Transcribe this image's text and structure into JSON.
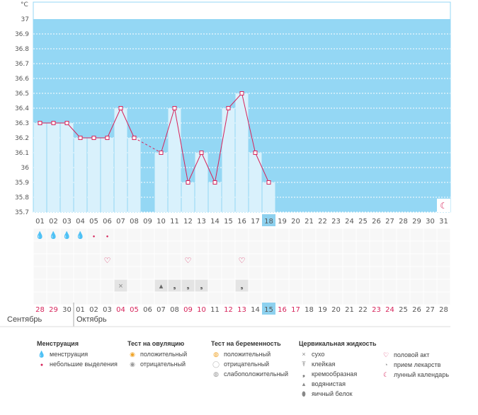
{
  "chart_data": {
    "type": "bar",
    "title": "",
    "ylabel": "°C",
    "ylim": [
      35.7,
      37.0
    ],
    "yticks": [
      "37",
      "36.9",
      "36.8",
      "36.7",
      "36.6",
      "36.5",
      "36.4",
      "36.3",
      "36.2",
      "36.1",
      "36",
      "35.9",
      "35.8",
      "35.7"
    ],
    "categories": [
      "01",
      "02",
      "03",
      "04",
      "05",
      "06",
      "07",
      "08",
      "09",
      "10",
      "11",
      "12",
      "13",
      "14",
      "15",
      "16",
      "17",
      "18",
      "19",
      "20",
      "21",
      "22",
      "23",
      "24",
      "25",
      "26",
      "27",
      "28",
      "29",
      "30",
      "31"
    ],
    "values": [
      36.3,
      36.3,
      36.3,
      36.2,
      36.2,
      36.2,
      36.4,
      36.2,
      null,
      36.1,
      36.4,
      35.9,
      36.1,
      35.9,
      36.4,
      36.5,
      36.1,
      35.9,
      null,
      null,
      null,
      null,
      null,
      null,
      null,
      null,
      null,
      null,
      null,
      null,
      null
    ],
    "today": "18",
    "colors": {
      "background": "#94d7f4",
      "bar": "#d9f1fc",
      "line": "#d6235a",
      "today": "#8dd1ef"
    }
  },
  "calendar": {
    "dates": [
      "28",
      "29",
      "30",
      "01",
      "02",
      "03",
      "04",
      "05",
      "06",
      "07",
      "08",
      "09",
      "10",
      "11",
      "12",
      "13",
      "14",
      "15",
      "16",
      "17",
      "18",
      "19",
      "20",
      "21",
      "22",
      "23",
      "24",
      "25",
      "26",
      "27",
      "28"
    ],
    "red_dates": [
      0,
      1,
      6,
      7,
      11,
      12,
      14,
      15,
      18,
      19,
      25,
      26
    ],
    "today_index": 17,
    "month_prev": "Сентябрь",
    "month_next": "Октябрь"
  },
  "legend": {
    "menstruation": {
      "title": "Менструация",
      "items": [
        "менструация",
        "небольшие выделения"
      ]
    },
    "ovulation": {
      "title": "Тест на овуляцию",
      "items": [
        "положительный",
        "отрицательный"
      ]
    },
    "pregnancy": {
      "title": "Тест на беременность",
      "items": [
        "положительный",
        "отрицательный",
        "слабоположительный"
      ]
    },
    "cervical": {
      "title": "Цервикальная жидкость",
      "items": [
        "сухо",
        "клейкая",
        "кремообразная",
        "водянистая",
        "яичный белок"
      ]
    },
    "other": {
      "items": [
        "половой акт",
        "прием лекарств",
        "лунный календарь"
      ]
    }
  }
}
